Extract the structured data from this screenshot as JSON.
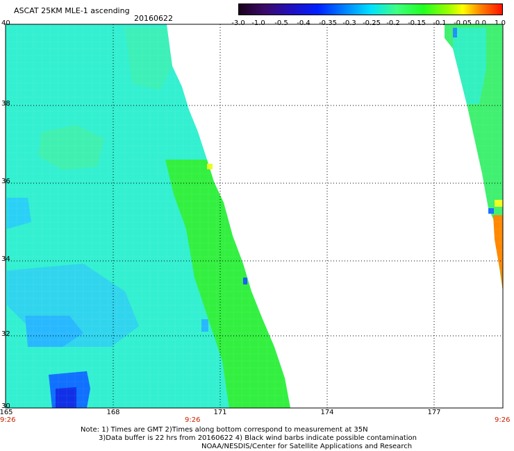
{
  "header": {
    "title": "ASCAT 25KM MLE-1 ascending",
    "date": "20160622"
  },
  "colorbar": {
    "labels": [
      "-3.0",
      "-1.0",
      "-0.5",
      "-0.4",
      "-0.35",
      "-0.3",
      "-0.25",
      "-0.2",
      "-0.15",
      "-0.1",
      "-0.05",
      "0.0",
      "1.0"
    ]
  },
  "axes": {
    "lat_labels": [
      "40",
      "38",
      "36",
      "34",
      "32",
      "30"
    ],
    "lon_labels": [
      "165",
      "168",
      "171",
      "174",
      "177"
    ]
  },
  "times": {
    "left": "9:26",
    "middle": "9:26",
    "right": "9:26"
  },
  "notes": {
    "line1": "Note: 1) Times are GMT 2)Times along bottom correspond to measurement at 35N",
    "line2": "3)Data buffer is 22 hrs from 20160622 4) Black wind barbs indicate possible contamination",
    "line3": "NOAA/NESDIS/Center for Satellite Applications and Research"
  },
  "colors": {
    "swath_main": "#33f0d0",
    "swath_green": "#33f040",
    "swath_blue": "#28b8ff",
    "high_value": "#ff8800"
  }
}
